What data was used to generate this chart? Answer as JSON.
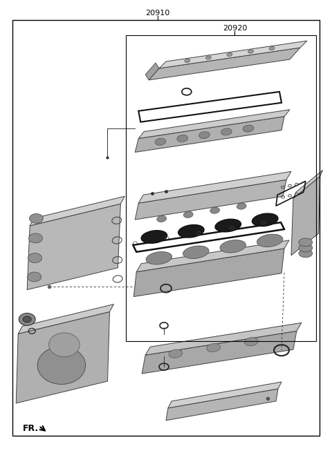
{
  "fig_width": 4.8,
  "fig_height": 6.56,
  "dpi": 100,
  "bg_color": "#ffffff",
  "border_color": "#000000",
  "label_20910": "20910",
  "label_20920": "20920",
  "label_FR": "FR.",
  "text_color": "#000000",
  "part_gray_light": "#c8c8c8",
  "part_gray_mid": "#a8a8a8",
  "part_gray_dark": "#787878",
  "part_gray_darker": "#505050",
  "gasket_color": "#222222",
  "edge_color": "#404040"
}
